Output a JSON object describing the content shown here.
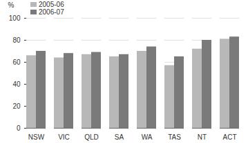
{
  "chart_data": {
    "type": "bar",
    "y_label": "%",
    "categories": [
      "NSW",
      "VIC",
      "QLD",
      "SA",
      "WA",
      "TAS",
      "NT",
      "ACT"
    ],
    "series": [
      {
        "name": "2005-06",
        "color": "#b8b8b8",
        "values": [
          66,
          64,
          67,
          65,
          70,
          57,
          72,
          81
        ]
      },
      {
        "name": "2006-07",
        "color": "#7a7a7a",
        "values": [
          70,
          68,
          69,
          67,
          74,
          65,
          80,
          83
        ]
      }
    ],
    "ylim": [
      0,
      100
    ],
    "yticks": [
      0,
      20,
      40,
      60,
      80,
      100
    ],
    "grid": true,
    "legend": "top-left"
  }
}
